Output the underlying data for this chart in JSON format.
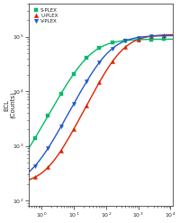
{
  "title": "",
  "xlabel": "",
  "ylabel": "ECL\n(Counts)",
  "series": [
    {
      "label": "S-PLEX",
      "color": "#00bb66",
      "marker": "s",
      "ec50": 30,
      "hill": 1.1,
      "bottom": 120,
      "top": 90000
    },
    {
      "label": "U-PLEX",
      "color": "#dd2200",
      "marker": "^",
      "ec50": 300,
      "hill": 1.2,
      "bottom": 200,
      "top": 110000
    },
    {
      "label": "V-PLEX",
      "color": "#2255cc",
      "marker": "v",
      "ec50": 120,
      "hill": 1.15,
      "bottom": 180,
      "top": 105000
    }
  ],
  "x_conc": [
    0.64,
    1.6,
    4,
    10,
    25,
    62.5,
    156,
    390,
    1000,
    2500,
    6250
  ],
  "xlim": [
    0.4,
    12000
  ],
  "ylim": [
    80,
    400000
  ],
  "yticks": [
    100.0,
    1000.0,
    10000.0,
    100000.0
  ],
  "xticks": [
    1.0,
    10.0,
    100.0,
    1000.0,
    10000.0
  ],
  "background_color": "#ffffff",
  "plot_bg_color": "#ffffff",
  "text_color": "#222222",
  "spine_color": "#444444",
  "figsize": [
    2.0,
    2.47
  ],
  "dpi": 100
}
